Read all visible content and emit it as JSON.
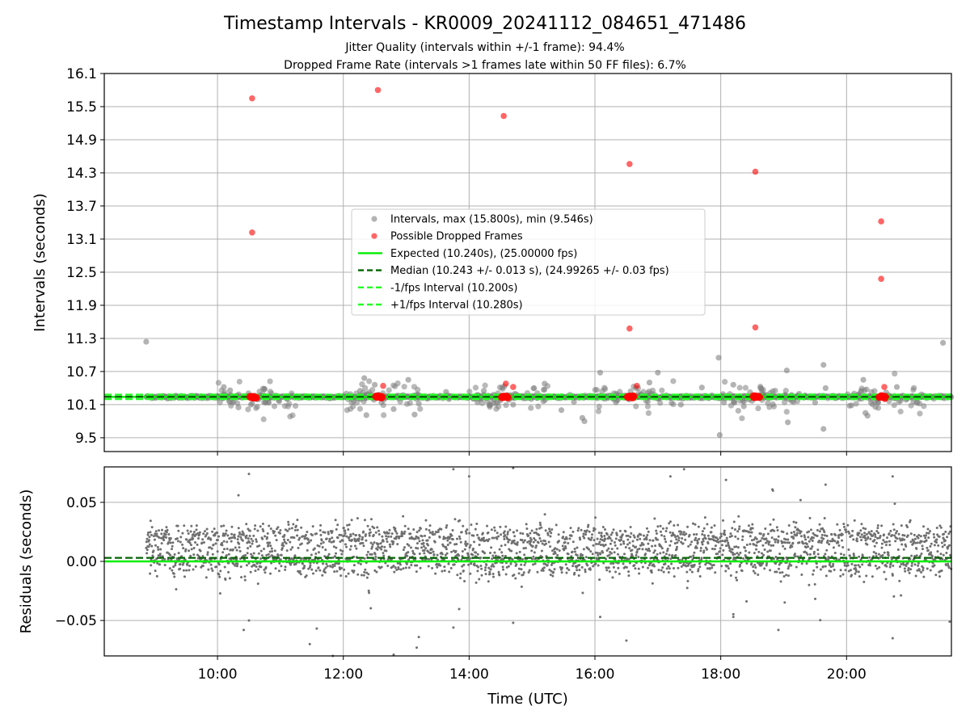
{
  "title": "Timestamp Intervals - KR0009_20241112_084651_471486",
  "subtitle_1": "Jitter Quality (intervals within +/-1 frame): 94.4%",
  "subtitle_2": "Dropped Frame Rate (intervals >1 frames late within 50 FF files): 6.7%",
  "colors": {
    "intervals": "#808080",
    "dropped": "#ff0000",
    "expected": "#00ee00",
    "median": "#006400",
    "fps_band": "#22ff22",
    "grid": "#b0b0b0"
  },
  "chart_data": [
    {
      "type": "scatter",
      "ylabel": "Intervals (seconds)",
      "xlim": [
        "08:12",
        "21:40"
      ],
      "ylim": [
        9.25,
        16.1
      ],
      "yticks": [
        "16.1",
        "15.5",
        "14.9",
        "14.3",
        "13.7",
        "13.1",
        "12.5",
        "11.9",
        "11.3",
        "10.7",
        "10.1",
        "9.5"
      ],
      "grid": true,
      "legend_position": "center",
      "legend": [
        "Intervals, max (15.800s), min (9.546s)",
        "Possible Dropped Frames",
        "Expected (10.240s), (25.00000 fps)",
        "Median (10.243 +/- 0.013 s), (24.99265 +/- 0.03 fps)",
        "-1/fps Interval (10.200s)",
        "+1/fps Interval (10.280s)"
      ],
      "reference_lines": {
        "expected": 10.24,
        "median": 10.243,
        "minus_1_fps": 10.2,
        "plus_1_fps": 10.28
      },
      "series": [
        {
          "name": "Intervals, max (15.800s), min (9.546s)",
          "points": [
            [
              "08:52",
              11.24
            ],
            [
              "10:06",
              10.42
            ],
            [
              "10:12",
              10.36
            ],
            [
              "10:20",
              10.05
            ],
            [
              "10:33",
              10.12
            ],
            [
              "10:45",
              10.38
            ],
            [
              "10:46",
              10.14
            ],
            [
              "12:16",
              10.35
            ],
            [
              "12:20",
              10.58
            ],
            [
              "12:22",
              9.91
            ],
            [
              "12:30",
              10.46
            ],
            [
              "12:48",
              10.02
            ],
            [
              "13:02",
              10.55
            ],
            [
              "13:08",
              9.92
            ],
            [
              "13:12",
              10.12
            ],
            [
              "13:38",
              10.33
            ],
            [
              "14:08",
              10.14
            ],
            [
              "14:14",
              10.35
            ],
            [
              "14:42",
              10.1
            ],
            [
              "15:12",
              10.48
            ],
            [
              "15:28",
              10.0
            ],
            [
              "15:40",
              10.15
            ],
            [
              "15:48",
              9.86
            ],
            [
              "15:50",
              9.8
            ],
            [
              "16:05",
              10.68
            ],
            [
              "16:20",
              10.14
            ],
            [
              "16:52",
              10.5
            ],
            [
              "17:00",
              10.68
            ],
            [
              "17:22",
              10.1
            ],
            [
              "17:42",
              10.41
            ],
            [
              "17:58",
              10.95
            ],
            [
              "17:59",
              9.55
            ],
            [
              "18:03",
              10.14
            ],
            [
              "18:12",
              10.46
            ],
            [
              "18:22",
              10.07
            ],
            [
              "18:38",
              10.4
            ],
            [
              "19:03",
              10.72
            ],
            [
              "19:04",
              9.78
            ],
            [
              "19:30",
              10.14
            ],
            [
              "19:38",
              10.82
            ],
            [
              "19:38",
              9.66
            ],
            [
              "19:40",
              10.4
            ],
            [
              "20:03",
              10.08
            ],
            [
              "20:16",
              10.55
            ],
            [
              "20:18",
              9.95
            ],
            [
              "20:20",
              9.9
            ],
            [
              "20:30",
              10.14
            ],
            [
              "20:48",
              10.42
            ],
            [
              "21:32",
              11.22
            ]
          ]
        },
        {
          "name": "Possible Dropped Frames",
          "points": [
            [
              "10:33",
              15.65
            ],
            [
              "10:33",
              13.22
            ],
            [
              "12:33",
              15.8
            ],
            [
              "12:38",
              10.44
            ],
            [
              "14:33",
              15.33
            ],
            [
              "14:35",
              10.48
            ],
            [
              "14:42",
              10.42
            ],
            [
              "16:33",
              14.46
            ],
            [
              "16:33",
              11.48
            ],
            [
              "16:40",
              10.44
            ],
            [
              "18:33",
              14.32
            ],
            [
              "18:33",
              11.5
            ],
            [
              "20:33",
              13.42
            ],
            [
              "20:33",
              12.38
            ],
            [
              "20:36",
              10.42
            ]
          ]
        }
      ]
    },
    {
      "type": "scatter",
      "xlabel": "Time (UTC)",
      "ylabel": "Residuals (seconds)",
      "xlim": [
        "08:12",
        "21:40"
      ],
      "ylim": [
        -0.08,
        0.08
      ],
      "xticks": [
        "10:00",
        "12:00",
        "14:00",
        "16:00",
        "18:00",
        "20:00"
      ],
      "yticks": [
        "0.05",
        "0.00",
        "−0.05"
      ],
      "grid": true,
      "reference_lines": {
        "expected": 0.0,
        "median": 0.003
      },
      "series": [
        {
          "name": "Residuals",
          "description_of_distribution": "dense band of points from 08:52 to 21:40; two clusters near 0.000 s and 0.020 s, spread about +/-0.01 s, with sparse outliers reaching +/-0.08 s",
          "x_range": [
            "08:52",
            "21:40"
          ],
          "cluster_centers": [
            0.0,
            0.02
          ],
          "outliers": [
            [
              "10:30",
              0.074
            ],
            [
              "10:20",
              0.056
            ],
            [
              "10:30",
              -0.05
            ],
            [
              "10:25",
              -0.058
            ],
            [
              "11:28",
              -0.07
            ],
            [
              "11:50",
              -0.08
            ],
            [
              "12:48",
              -0.079
            ],
            [
              "13:12",
              -0.064
            ],
            [
              "13:10",
              -0.073
            ],
            [
              "13:45",
              0.078
            ],
            [
              "13:45",
              -0.056
            ],
            [
              "14:00",
              0.072
            ],
            [
              "14:42",
              0.079
            ],
            [
              "14:42",
              -0.052
            ],
            [
              "16:05",
              -0.047
            ],
            [
              "16:30",
              -0.067
            ],
            [
              "17:12",
              0.072
            ],
            [
              "17:25",
              0.078
            ],
            [
              "18:05",
              0.069
            ],
            [
              "18:12",
              -0.047
            ],
            [
              "18:55",
              -0.058
            ],
            [
              "19:40",
              0.065
            ],
            [
              "20:44",
              0.072
            ],
            [
              "20:44",
              -0.065
            ]
          ]
        }
      ]
    }
  ]
}
